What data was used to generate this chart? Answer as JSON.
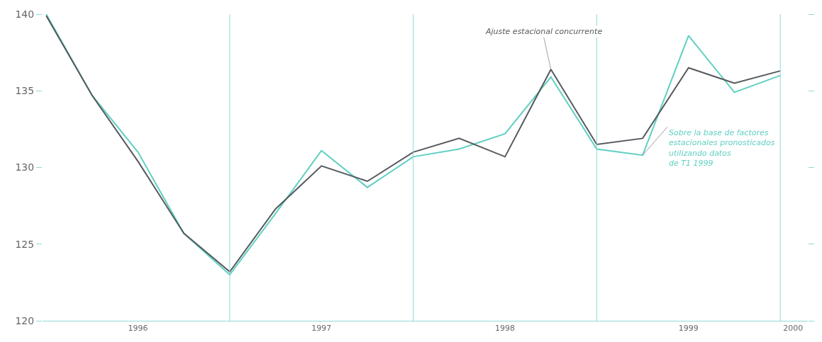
{
  "chart_data": {
    "type": "line",
    "x": [
      1996.0,
      1996.25,
      1996.5,
      1996.75,
      1997.0,
      1997.25,
      1997.5,
      1997.75,
      1998.0,
      1998.25,
      1998.5,
      1998.75,
      1999.0,
      1999.25,
      1999.5,
      1999.75,
      2000.0
    ],
    "series": [
      {
        "name": "Sobre la base de factores\nestacionales pronosticados\nutilizando datos\nde T1 1999",
        "color": "#5fd0c2",
        "values": [
          140.0,
          134.7,
          131.0,
          125.7,
          123.0,
          127.0,
          131.1,
          128.7,
          130.7,
          131.2,
          132.2,
          135.9,
          131.2,
          130.8,
          138.6,
          134.9,
          136.0
        ]
      },
      {
        "name": "Ajuste estacional concurrente",
        "color": "#55595e",
        "values": [
          139.9,
          134.7,
          130.4,
          125.7,
          123.2,
          127.3,
          130.1,
          129.1,
          131.0,
          131.9,
          130.7,
          136.4,
          131.5,
          131.9,
          136.5,
          135.5,
          136.3
        ]
      }
    ],
    "xlim": [
      1995.98,
      2000.15
    ],
    "xticks": [
      {
        "value": 1996.5,
        "label": "1996"
      },
      {
        "value": 1997.5,
        "label": "1997"
      },
      {
        "value": 1998.5,
        "label": "1998"
      },
      {
        "value": 1999.5,
        "label": "1999"
      },
      {
        "value": 2000.07,
        "label": "2000"
      }
    ],
    "ylim": [
      120,
      140
    ],
    "yticks": [
      120,
      125,
      130,
      135,
      140
    ],
    "ref_lines": [
      {
        "axis": "x",
        "value": 1997.0,
        "color": "#8fd9d6"
      },
      {
        "axis": "x",
        "value": 1998.0,
        "color": "#8fd9d6"
      },
      {
        "axis": "x",
        "value": 1999.0,
        "color": "#8fd9d6"
      },
      {
        "axis": "x",
        "value": 2000.0,
        "color": "#8fd9d6"
      }
    ],
    "legend": false,
    "marker": "none",
    "line_style": "solid"
  }
}
